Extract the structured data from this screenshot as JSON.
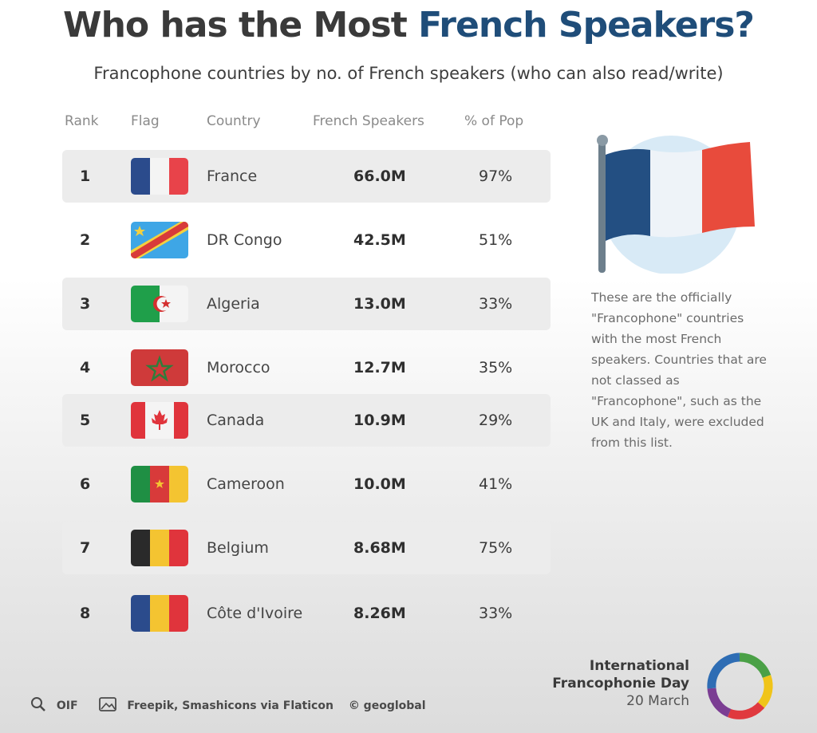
{
  "header": {
    "title_prefix": "Who has the Most",
    "title_highlight": "French Speakers?",
    "subtitle": "Francophone countries by no. of French speakers (who can also read/write)"
  },
  "chart_data": {
    "type": "table",
    "columns": [
      "Rank",
      "Flag",
      "Country",
      "French Speakers",
      "% of Pop"
    ],
    "rows": [
      {
        "rank": "1",
        "flag": "france-flag",
        "country": "France",
        "speakers": "66.0M",
        "pct": "97%"
      },
      {
        "rank": "2",
        "flag": "dr-congo-flag",
        "country": "DR Congo",
        "speakers": "42.5M",
        "pct": "51%"
      },
      {
        "rank": "3",
        "flag": "algeria-flag",
        "country": "Algeria",
        "speakers": "13.0M",
        "pct": "33%"
      },
      {
        "rank": "4",
        "flag": "morocco-flag",
        "country": "Morocco",
        "speakers": "12.7M",
        "pct": "35%"
      },
      {
        "rank": "5",
        "flag": "canada-flag",
        "country": "Canada",
        "speakers": "10.9M",
        "pct": "29%"
      },
      {
        "rank": "6",
        "flag": "cameroon-flag",
        "country": "Cameroon",
        "speakers": "10.0M",
        "pct": "41%"
      },
      {
        "rank": "7",
        "flag": "belgium-flag",
        "country": "Belgium",
        "speakers": "8.68M",
        "pct": "75%"
      },
      {
        "rank": "8",
        "flag": "cote-divoire-flag",
        "country": "Côte d'Ivoire",
        "speakers": "8.26M",
        "pct": "33%"
      }
    ]
  },
  "note": "These are the officially \"Francophone\" countries with the most French speakers. Countries that are not classed as \"Francophone\", such as the UK and Italy, were excluded from this list.",
  "footer": {
    "source": "OIF",
    "icons_credit": "Freepik, Smashicons via Flaticon",
    "copyright": "© geoglobal"
  },
  "event": {
    "line1": "International",
    "line2": "Francophonie Day",
    "date": "20 March"
  },
  "colors": {
    "title": "#3a3a3a",
    "highlight": "#1f4d79",
    "row_shade": "#ececec",
    "french_blue": "#2b4b8c",
    "french_red": "#e8434a"
  }
}
